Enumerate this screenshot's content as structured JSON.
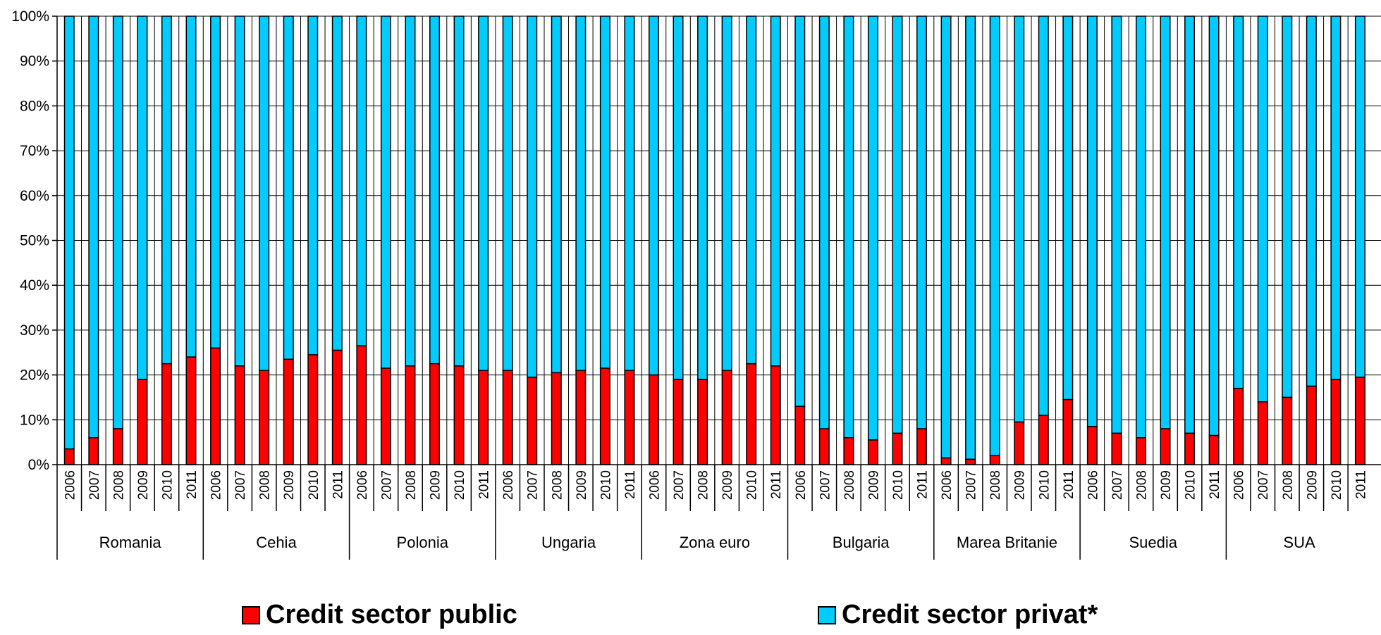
{
  "chart_data": {
    "type": "bar",
    "stacked": true,
    "normalized": true,
    "ylim": [
      0,
      100
    ],
    "yticks": [
      "0%",
      "10%",
      "20%",
      "30%",
      "40%",
      "50%",
      "60%",
      "70%",
      "80%",
      "90%",
      "100%"
    ],
    "grid": true,
    "legend_position": "bottom",
    "groups": [
      {
        "name": "Romania",
        "years": [
          "2006",
          "2007",
          "2008",
          "2009",
          "2010",
          "2011"
        ],
        "public": [
          3.5,
          6,
          8,
          19,
          22.5,
          24
        ]
      },
      {
        "name": "Cehia",
        "years": [
          "2006",
          "2007",
          "2008",
          "2009",
          "2010",
          "2011"
        ],
        "public": [
          26,
          22,
          21,
          23.5,
          24.5,
          25.5
        ]
      },
      {
        "name": "Polonia",
        "years": [
          "2006",
          "2007",
          "2008",
          "2009",
          "2010",
          "2011"
        ],
        "public": [
          26.5,
          21.5,
          22,
          22.5,
          22,
          21
        ]
      },
      {
        "name": "Ungaria",
        "years": [
          "2006",
          "2007",
          "2008",
          "2009",
          "2010",
          "2011"
        ],
        "public": [
          21,
          19.5,
          20.5,
          21,
          21.5,
          21
        ]
      },
      {
        "name": "Zona euro",
        "years": [
          "2006",
          "2007",
          "2008",
          "2009",
          "2010",
          "2011"
        ],
        "public": [
          20,
          19,
          19,
          21,
          22.5,
          22
        ]
      },
      {
        "name": "Bulgaria",
        "years": [
          "2006",
          "2007",
          "2008",
          "2009",
          "2010",
          "2011"
        ],
        "public": [
          13,
          8,
          6,
          5.5,
          7,
          8
        ]
      },
      {
        "name": "Marea Britanie",
        "years": [
          "2006",
          "2007",
          "2008",
          "2009",
          "2010",
          "2011"
        ],
        "public": [
          1.5,
          1.2,
          2,
          9.5,
          11,
          14.5
        ]
      },
      {
        "name": "Suedia",
        "years": [
          "2006",
          "2007",
          "2008",
          "2009",
          "2010",
          "2011"
        ],
        "public": [
          8.5,
          7,
          6,
          8,
          7,
          6.5
        ]
      },
      {
        "name": "SUA",
        "years": [
          "2006",
          "2007",
          "2008",
          "2009",
          "2010",
          "2011"
        ],
        "public": [
          17,
          14,
          15,
          17.5,
          19,
          19.5
        ]
      }
    ],
    "series": [
      {
        "name": "Credit sector public",
        "color": "#ff0000"
      },
      {
        "name": "Credit sector privat*",
        "color": "#00ccff"
      }
    ]
  }
}
